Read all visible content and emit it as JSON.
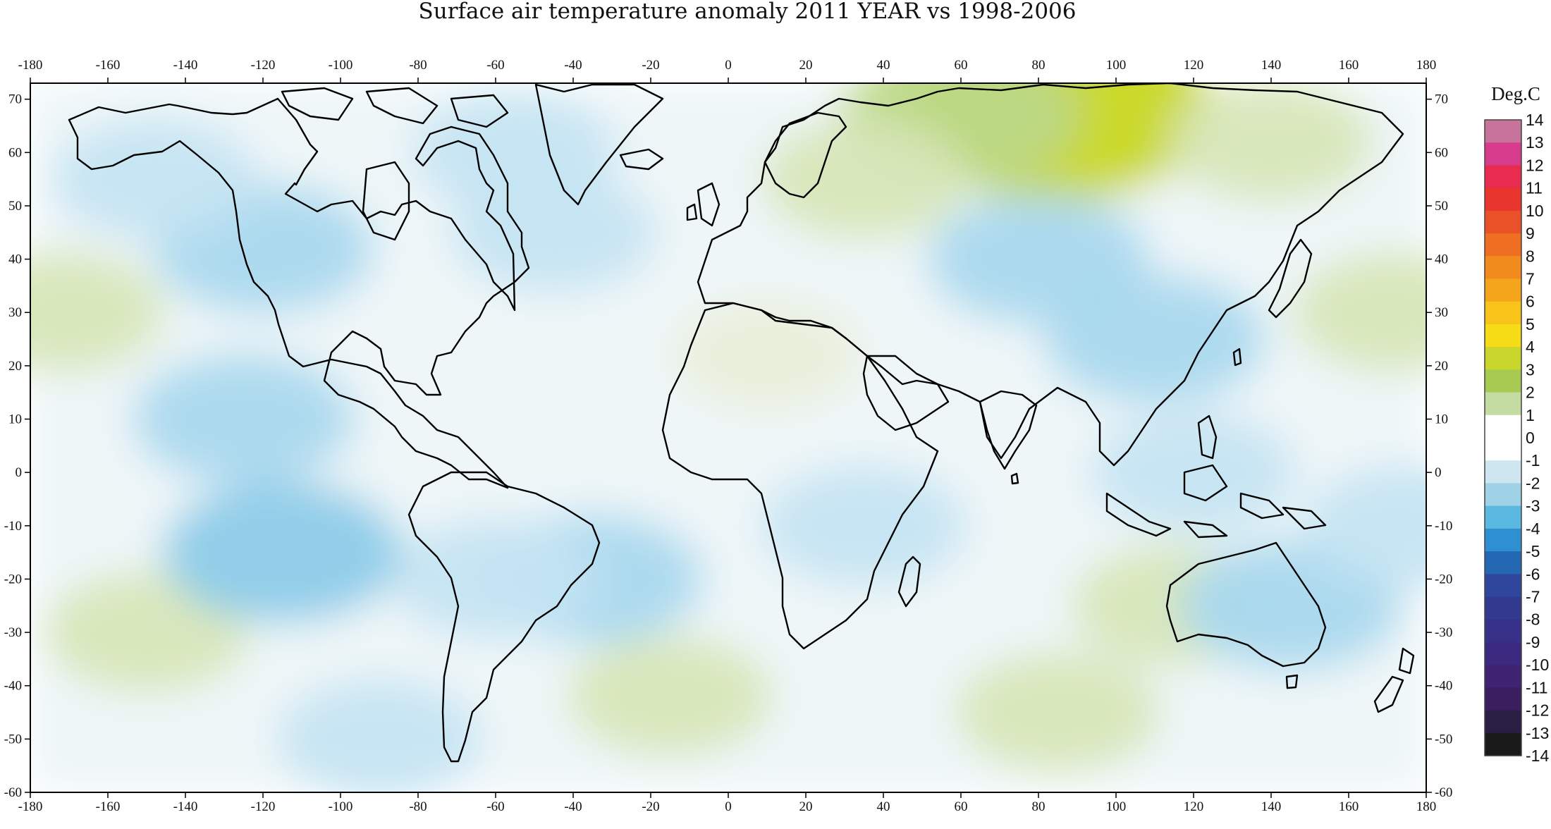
{
  "map": {
    "title": "Surface air temperature anomaly 2011 YEAR vs 1998-2006",
    "projection": "equirectangular",
    "lon_range": [
      -180,
      180
    ],
    "lat_range": [
      -60,
      73
    ],
    "x_ticks": [
      "-180",
      "-160",
      "-140",
      "-120",
      "-100",
      "-80",
      "-60",
      "-40",
      "-20",
      "0",
      "20",
      "40",
      "60",
      "80",
      "100",
      "120",
      "140",
      "160",
      "180"
    ],
    "y_ticks": [
      "70",
      "60",
      "50",
      "40",
      "30",
      "20",
      "10",
      "0",
      "-10",
      "-20",
      "-30",
      "-40",
      "-50",
      "-60"
    ],
    "land_outline_color": "#000000",
    "anomaly_patches": [
      {
        "name": "central-siberia-warm",
        "lon": 85,
        "lat": 68,
        "value": 4
      },
      {
        "name": "arctic-russia-warm",
        "lon": 60,
        "lat": 67,
        "value": 2
      },
      {
        "name": "east-siberia-warm",
        "lon": 140,
        "lat": 62,
        "value": 1
      },
      {
        "name": "north-pacific-subtropics-warm-west",
        "lon": -172,
        "lat": 30,
        "value": 1
      },
      {
        "name": "north-pacific-subtropics-warm-east",
        "lon": 172,
        "lat": 30,
        "value": 1
      },
      {
        "name": "south-pacific-warm",
        "lon": -150,
        "lat": -30,
        "value": 1
      },
      {
        "name": "south-atlantic-warm",
        "lon": -15,
        "lat": -42,
        "value": 1
      },
      {
        "name": "southern-indian-ocean-warm",
        "lon": 85,
        "lat": -45,
        "value": 1
      },
      {
        "name": "western-australia-warm",
        "lon": 115,
        "lat": -25,
        "value": 1
      },
      {
        "name": "north-africa-warm",
        "lon": 10,
        "lat": 22,
        "value": 0.5
      },
      {
        "name": "eastern-europe-warm",
        "lon": 35,
        "lat": 55,
        "value": 1
      },
      {
        "name": "north-america-cold",
        "lon": -120,
        "lat": 42,
        "value": -1.5
      },
      {
        "name": "alaska-gulf-cold",
        "lon": -148,
        "lat": 55,
        "value": -1
      },
      {
        "name": "tropical-east-pacific-cold",
        "lon": -125,
        "lat": 10,
        "value": -1.5
      },
      {
        "name": "south-east-pacific-cold",
        "lon": -115,
        "lat": -15,
        "value": -2
      },
      {
        "name": "central-asia-cold",
        "lon": 80,
        "lat": 40,
        "value": -1.5
      },
      {
        "name": "china-cold",
        "lon": 110,
        "lat": 25,
        "value": -1.5
      },
      {
        "name": "southeast-asia-cold",
        "lon": 120,
        "lat": 0,
        "value": -1
      },
      {
        "name": "north-atlantic-cold",
        "lon": -45,
        "lat": 45,
        "value": -1
      },
      {
        "name": "labrador-sea-cold",
        "lon": -55,
        "lat": 60,
        "value": -1
      },
      {
        "name": "south-atlantic-cold",
        "lon": -35,
        "lat": -20,
        "value": -1.5
      },
      {
        "name": "australia-east-cold",
        "lon": 145,
        "lat": -25,
        "value": -1.5
      },
      {
        "name": "southern-ocean-cold",
        "lon": -90,
        "lat": -50,
        "value": -1
      },
      {
        "name": "south-america-cold",
        "lon": -60,
        "lat": -20,
        "value": -1
      },
      {
        "name": "east-africa-cold",
        "lon": 35,
        "lat": -10,
        "value": -1
      },
      {
        "name": "south-pacific-east-cold",
        "lon": 175,
        "lat": -10,
        "value": -1
      }
    ]
  },
  "colorbar": {
    "title": "Deg.C",
    "labels": [
      "14",
      "13",
      "12",
      "11",
      "10",
      "9",
      "8",
      "7",
      "6",
      "5",
      "4",
      "3",
      "2",
      "1",
      "0",
      "-1",
      "-2",
      "-3",
      "-4",
      "-5",
      "-6",
      "-7",
      "-8",
      "-9",
      "-10",
      "-11",
      "-12",
      "-13",
      "-14"
    ],
    "colors": [
      "#c8739c",
      "#d73c8c",
      "#e82b4e",
      "#e8352e",
      "#eb5128",
      "#ee6f22",
      "#f28b1d",
      "#f5a51b",
      "#f8c41a",
      "#f5dc16",
      "#c9d62b",
      "#a7cb52",
      "#c4dca2",
      "#ffffff",
      "#ffffff",
      "#cde6ef",
      "#9fd1e7",
      "#5bb8e0",
      "#2f90d1",
      "#2468b4",
      "#2f469c",
      "#323a8f",
      "#363088",
      "#3b2a7f",
      "#3e2472",
      "#3a1e60",
      "#2b1e44",
      "#1a1a1a"
    ]
  }
}
